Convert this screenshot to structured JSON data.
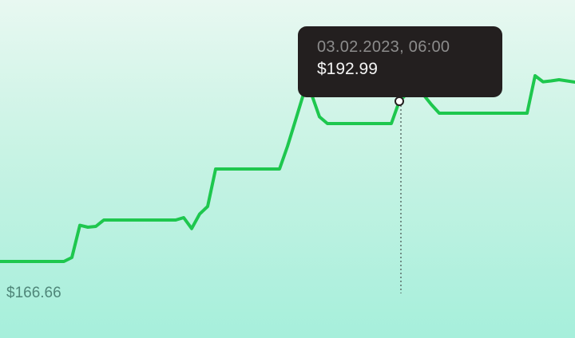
{
  "chart_data": {
    "type": "line",
    "title": "",
    "xlabel": "",
    "ylabel": "",
    "min_label": "$166.66",
    "line_color": "#1ec74e",
    "grid": false,
    "values": [
      166.66,
      166.66,
      166.66,
      166.66,
      166.66,
      166.66,
      166.66,
      166.66,
      166.66,
      167.32,
      172.61,
      172.29,
      172.42,
      173.47,
      173.47,
      173.47,
      173.47,
      173.47,
      173.47,
      173.47,
      173.47,
      173.47,
      173.47,
      173.87,
      172.07,
      174.47,
      175.7,
      181.86,
      181.86,
      181.86,
      181.86,
      181.86,
      181.86,
      181.86,
      181.86,
      181.86,
      185.59,
      189.85,
      194.17,
      194.17,
      190.44,
      189.32,
      189.32,
      189.32,
      189.32,
      189.32,
      189.32,
      189.32,
      189.32,
      189.32,
      192.99,
      194.3,
      194.37,
      194.11,
      192.47,
      191.03,
      191.03,
      191.03,
      191.03,
      191.03,
      191.03,
      191.03,
      191.03,
      191.03,
      191.03,
      191.03,
      191.03,
      197.18,
      196.19,
      196.33,
      196.53,
      196.33,
      196.13
    ],
    "tooltip": {
      "index": 50,
      "date": "03.02.2023, 06:00",
      "price": "$192.99"
    }
  }
}
